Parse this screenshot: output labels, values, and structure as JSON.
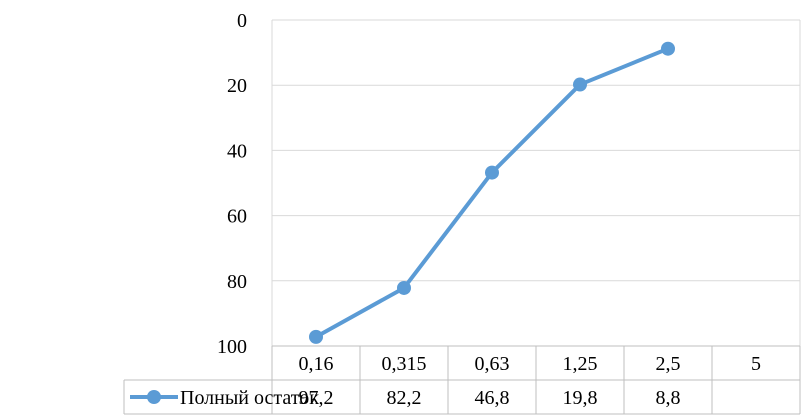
{
  "chart_data": {
    "type": "line",
    "categories": [
      "0,16",
      "0,315",
      "0,63",
      "1,25",
      "2,5",
      "5"
    ],
    "series": [
      {
        "name": "Полный остаток",
        "values": [
          97.2,
          82.2,
          46.8,
          19.8,
          8.8,
          null
        ],
        "value_labels": [
          "97,2",
          "82,2",
          "46,8",
          "19,8",
          "8,8",
          ""
        ],
        "color": "#5b9bd5"
      }
    ],
    "y_ticks": [
      "0",
      "20",
      "40",
      "60",
      "80",
      "100"
    ],
    "ylim": [
      0,
      100
    ],
    "y_reversed": true,
    "grid": true,
    "data_table": true,
    "legend": "data-table-left"
  }
}
